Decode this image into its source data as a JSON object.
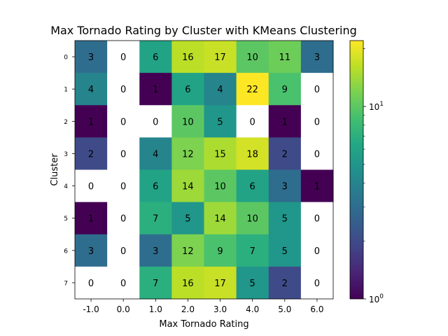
{
  "chart_data": {
    "type": "heatmap",
    "title": "Max Tornado Rating by Cluster with KMeans Clustering",
    "xlabel": "Max Tornado Rating",
    "ylabel": "Cluster",
    "x_categories": [
      "-1.0",
      "0.0",
      "1.0",
      "2.0",
      "3.0",
      "4.0",
      "5.0",
      "6.0"
    ],
    "y_categories": [
      "0",
      "1",
      "2",
      "3",
      "4",
      "5",
      "6",
      "7"
    ],
    "values": [
      [
        3,
        0,
        6,
        16,
        17,
        10,
        11,
        3
      ],
      [
        4,
        0,
        1,
        6,
        4,
        22,
        9,
        0
      ],
      [
        1,
        0,
        0,
        10,
        5,
        0,
        1,
        0
      ],
      [
        2,
        0,
        4,
        12,
        15,
        18,
        2,
        0
      ],
      [
        0,
        0,
        6,
        14,
        10,
        6,
        3,
        1
      ],
      [
        1,
        0,
        7,
        5,
        14,
        10,
        5,
        0
      ],
      [
        3,
        0,
        3,
        12,
        9,
        7,
        5,
        0
      ],
      [
        0,
        0,
        7,
        16,
        17,
        5,
        2,
        0
      ]
    ],
    "colorbar": {
      "scale": "log",
      "range": [
        1,
        22
      ],
      "colormap": "viridis",
      "major_ticks": [
        {
          "value": 1,
          "base": "10",
          "exp": "0"
        },
        {
          "value": 10,
          "base": "10",
          "exp": "1"
        }
      ]
    },
    "zero_color": "#ffffff"
  }
}
